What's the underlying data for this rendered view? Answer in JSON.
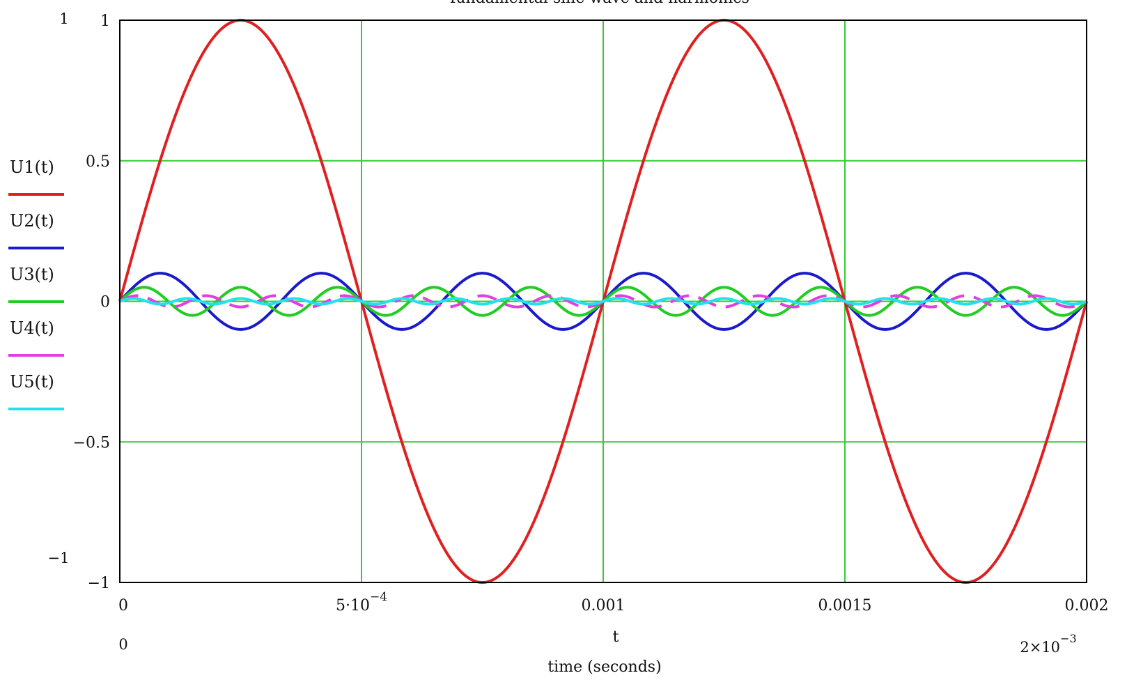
{
  "chart_data": {
    "type": "line",
    "title": "fundamental sine wave and harmonics",
    "xlabel": "time (seconds)",
    "x_var": "t",
    "ylabel": "",
    "xlim": [
      0,
      0.002
    ],
    "ylim": [
      -1,
      1
    ],
    "x_ticks": [
      0,
      0.0005,
      0.001,
      0.0015,
      0.002
    ],
    "x_tick_labels": [
      "0",
      "5·10",
      "0.001",
      "0.0015",
      "0.002"
    ],
    "x_tick_exponent": "−4",
    "y_ticks": [
      -1,
      -0.5,
      0,
      0.5,
      1
    ],
    "y_tick_labels": [
      "−1",
      "−0.5",
      "0",
      "0.5",
      "1"
    ],
    "range_markers": {
      "y_max": "1",
      "y_min": "−1",
      "x_min": "0",
      "x_max_mantissa": "2×10",
      "x_max_exponent": "−3"
    },
    "grid": true,
    "legend_position": "left",
    "series": [
      {
        "name": "U1(t)",
        "color": "#e02020",
        "amplitude": 1.0,
        "frequency_hz": 1000,
        "phase": 0
      },
      {
        "name": "U2(t)",
        "color": "#1a1acc",
        "amplitude": 0.1,
        "frequency_hz": 3000,
        "phase": 0
      },
      {
        "name": "U3(t)",
        "color": "#22cc22",
        "amplitude": 0.05,
        "frequency_hz": 5000,
        "phase": 0
      },
      {
        "name": "U4(t)",
        "color": "#e040e0",
        "amplitude": 0.02,
        "frequency_hz": 7000,
        "phase": 0
      },
      {
        "name": "U5(t)",
        "color": "#22e0ee",
        "amplitude": 0.01,
        "frequency_hz": 9000,
        "phase": 0
      }
    ],
    "colors": {
      "grid": "#33cc33",
      "frame": "#000000"
    }
  }
}
